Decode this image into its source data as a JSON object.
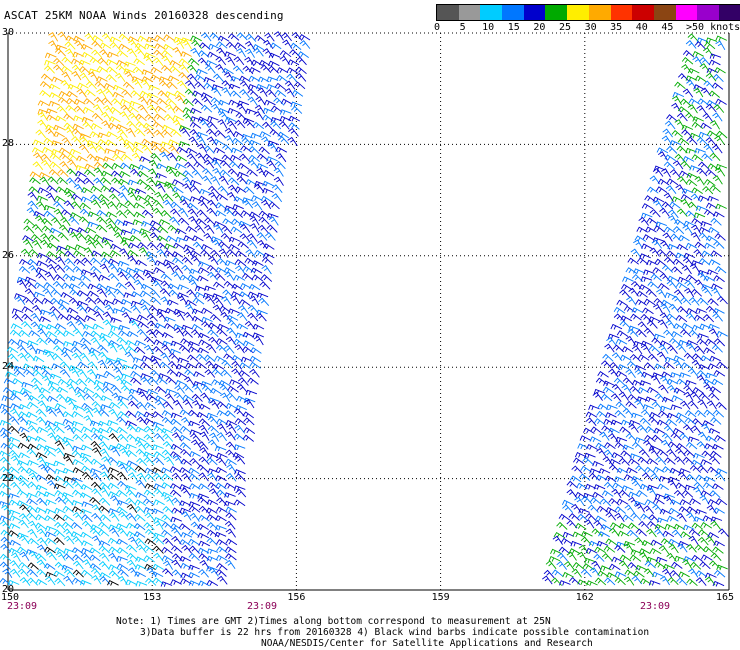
{
  "title": "ASCAT 25KM NOAA Winds 20160328 descending",
  "legend": {
    "labels": [
      "0",
      "5",
      "10",
      "15",
      "20",
      "25",
      "30",
      "35",
      "40",
      "45",
      ">50 knots"
    ],
    "colors": [
      "#555555",
      "#999999",
      "#00ccff",
      "#0077ff",
      "#0000cc",
      "#00aa00",
      "#ffee00",
      "#ffaa00",
      "#ff3300",
      "#cc0000",
      "#8b4513",
      "#ff00ff",
      "#9900cc",
      "#330066"
    ]
  },
  "map": {
    "lat_labels": [
      "30",
      "28",
      "26",
      "24",
      "22",
      "20"
    ],
    "lon_labels": [
      "150",
      "153",
      "156",
      "159",
      "162",
      "165"
    ],
    "lat_range": [
      20,
      30
    ],
    "lon_range": [
      150,
      165
    ],
    "grid": true
  },
  "times": [
    "23:09",
    "23:09",
    "23:09"
  ],
  "notes": {
    "line1": "Note: 1) Times are GMT 2)Times along bottom correspond to measurement at 25N",
    "line2": "3)Data buffer is 22 hrs from 20160328 4) Black wind barbs indicate possible contamination",
    "line3": "NOAA/NESDIS/Center for Satellite Applications and Research"
  }
}
